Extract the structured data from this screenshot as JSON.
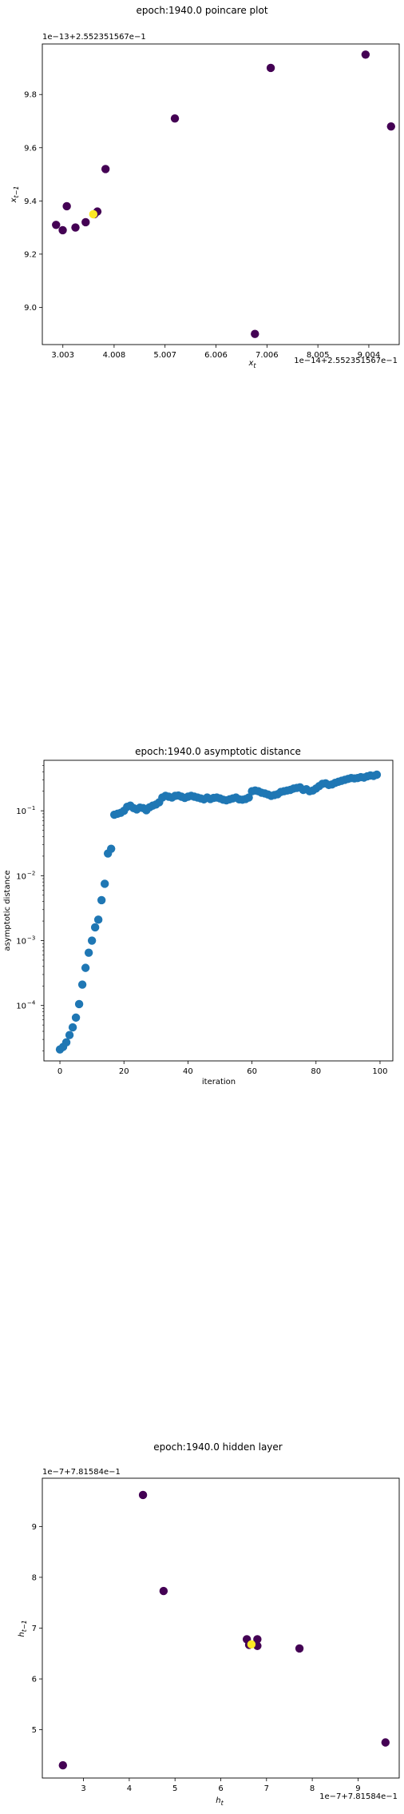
{
  "chart_data": [
    {
      "type": "scatter",
      "title": "epoch:1940.0 poincare plot",
      "xlabel": "x_t",
      "ylabel": "x_{t-1}",
      "x_offset_label": "1e−14+2.552351567e−1",
      "y_offset_label": "1e−13+2.552351567e−1",
      "x_tick_labels": [
        "3.003",
        "4.008",
        "5.007",
        "6.006",
        "7.006",
        "8.005",
        "9.004"
      ],
      "y_tick_labels": [
        "9.0",
        "9.2",
        "9.4",
        "9.6",
        "9.8"
      ],
      "xlim": [
        2.6,
        9.6
      ],
      "ylim": [
        8.86,
        9.99
      ],
      "points": [
        {
          "x": 2.87,
          "y": 9.31,
          "c": "#440154"
        },
        {
          "x": 3.0,
          "y": 9.29,
          "c": "#440154"
        },
        {
          "x": 3.08,
          "y": 9.38,
          "c": "#440154"
        },
        {
          "x": 3.25,
          "y": 9.3,
          "c": "#440154"
        },
        {
          "x": 3.45,
          "y": 9.32,
          "c": "#440154"
        },
        {
          "x": 3.62,
          "y": 9.35,
          "c": "#440154"
        },
        {
          "x": 3.68,
          "y": 9.36,
          "c": "#440154"
        },
        {
          "x": 3.84,
          "y": 9.52,
          "c": "#440154"
        },
        {
          "x": 5.2,
          "y": 9.71,
          "c": "#440154"
        },
        {
          "x": 6.77,
          "y": 8.9,
          "c": "#440154"
        },
        {
          "x": 7.08,
          "y": 9.9,
          "c": "#440154"
        },
        {
          "x": 8.94,
          "y": 9.95,
          "c": "#440154"
        },
        {
          "x": 9.44,
          "y": 9.68,
          "c": "#440154"
        },
        {
          "x": 3.6,
          "y": 9.35,
          "c": "#fde725"
        }
      ]
    },
    {
      "type": "scatter",
      "title": "epoch:1940.0 asymptotic distance",
      "xlabel": "iteration",
      "ylabel": "asymptotic distance",
      "yscale": "log",
      "x_tick_labels": [
        "0",
        "20",
        "40",
        "60",
        "80",
        "100"
      ],
      "y_tick_labels": [
        "10",
        "10",
        "10",
        "10"
      ],
      "y_tick_exponents": [
        "−4",
        "−3",
        "−2",
        "−1"
      ],
      "xlim": [
        -5,
        104
      ],
      "ylim": [
        1.4e-05,
        0.6
      ],
      "color": "#1f77b4",
      "x": [
        0,
        1,
        2,
        3,
        4,
        5,
        6,
        7,
        8,
        9,
        10,
        11,
        12,
        13,
        14,
        15,
        16,
        17,
        18,
        19,
        20,
        21,
        22,
        23,
        24,
        25,
        26,
        27,
        28,
        29,
        30,
        31,
        32,
        33,
        34,
        35,
        36,
        37,
        38,
        39,
        40,
        41,
        42,
        43,
        44,
        45,
        46,
        47,
        48,
        49,
        50,
        51,
        52,
        53,
        54,
        55,
        56,
        57,
        58,
        59,
        60,
        61,
        62,
        63,
        64,
        65,
        66,
        67,
        68,
        69,
        70,
        71,
        72,
        73,
        74,
        75,
        76,
        77,
        78,
        79,
        80,
        81,
        82,
        83,
        84,
        85,
        86,
        87,
        88,
        89,
        90,
        91,
        92,
        93,
        94,
        95,
        96,
        97,
        98,
        99
      ],
      "y": [
        2.1e-05,
        2.3e-05,
        2.7e-05,
        3.5e-05,
        4.6e-05,
        6.5e-05,
        0.000105,
        0.00021,
        0.00038,
        0.00065,
        0.001,
        0.0016,
        0.0021,
        0.0042,
        0.0075,
        0.022,
        0.026,
        0.087,
        0.09,
        0.093,
        0.1,
        0.115,
        0.12,
        0.11,
        0.105,
        0.112,
        0.11,
        0.102,
        0.113,
        0.12,
        0.125,
        0.135,
        0.16,
        0.17,
        0.165,
        0.16,
        0.17,
        0.172,
        0.165,
        0.158,
        0.165,
        0.17,
        0.165,
        0.16,
        0.155,
        0.15,
        0.16,
        0.152,
        0.158,
        0.16,
        0.155,
        0.148,
        0.145,
        0.15,
        0.155,
        0.16,
        0.15,
        0.148,
        0.152,
        0.16,
        0.2,
        0.205,
        0.2,
        0.19,
        0.185,
        0.178,
        0.17,
        0.175,
        0.18,
        0.195,
        0.2,
        0.205,
        0.21,
        0.22,
        0.225,
        0.23,
        0.21,
        0.215,
        0.2,
        0.205,
        0.22,
        0.24,
        0.26,
        0.265,
        0.25,
        0.255,
        0.27,
        0.28,
        0.29,
        0.3,
        0.31,
        0.32,
        0.315,
        0.32,
        0.33,
        0.325,
        0.34,
        0.35,
        0.345,
        0.36
      ]
    },
    {
      "type": "scatter",
      "title": "epoch:1940.0 hidden layer",
      "xlabel": "h_t",
      "ylabel": "h_{t-1}",
      "x_offset_label": "1e−7+7.81584e−1",
      "y_offset_label": "1e−7+7.81584e−1",
      "x_tick_labels": [
        "3",
        "4",
        "5",
        "6",
        "7",
        "8",
        "9"
      ],
      "y_tick_labels": [
        "5",
        "6",
        "7",
        "8",
        "9"
      ],
      "xlim": [
        2.1,
        9.9
      ],
      "ylim": [
        4.05,
        9.95
      ],
      "points": [
        {
          "x": 2.55,
          "y": 4.3,
          "c": "#440154"
        },
        {
          "x": 4.3,
          "y": 9.62,
          "c": "#440154"
        },
        {
          "x": 4.75,
          "y": 7.73,
          "c": "#440154"
        },
        {
          "x": 6.57,
          "y": 6.78,
          "c": "#440154"
        },
        {
          "x": 6.8,
          "y": 6.78,
          "c": "#440154"
        },
        {
          "x": 6.62,
          "y": 6.67,
          "c": "#440154"
        },
        {
          "x": 6.8,
          "y": 6.65,
          "c": "#440154"
        },
        {
          "x": 7.72,
          "y": 6.6,
          "c": "#440154"
        },
        {
          "x": 9.6,
          "y": 4.75,
          "c": "#440154"
        },
        {
          "x": 6.67,
          "y": 6.68,
          "c": "#fde725"
        }
      ]
    }
  ]
}
